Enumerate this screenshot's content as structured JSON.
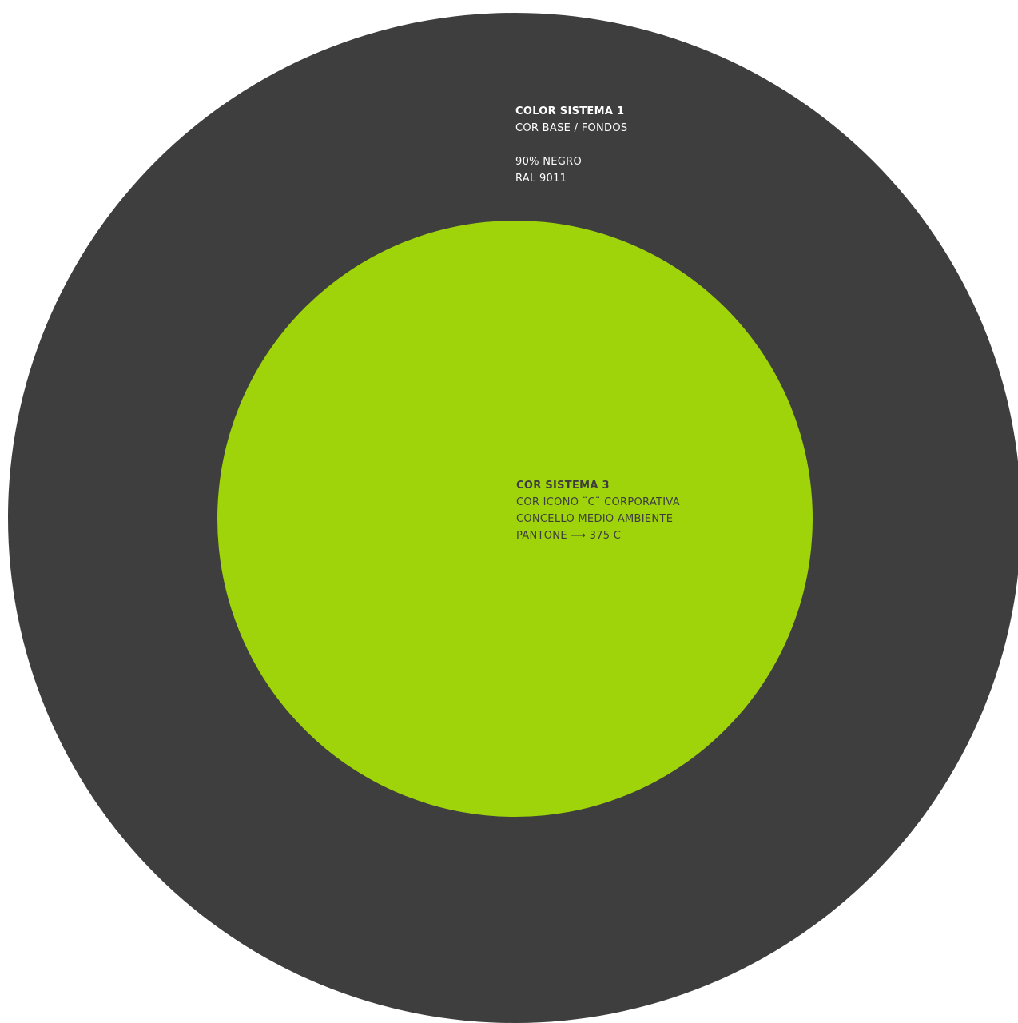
{
  "colors": {
    "background": "#ffffff",
    "outer_circle": "#3e3e3e",
    "inner_circle": "#a0d40a",
    "outer_text": "#ffffff",
    "inner_text": "#3d3d3d"
  },
  "outer_swatch": {
    "title": "COLOR SISTEMA 1",
    "subtitle": "COR BASE / FONDOS",
    "spec_1": "90% NEGRO",
    "spec_2": "RAL 9011"
  },
  "inner_swatch": {
    "title": "COR SISTEMA 3",
    "line_1": "COR ICONO ¨C¨ CORPORATIVA",
    "line_2": "CONCELLO MEDIO AMBIENTE",
    "line_3": "PANTONE ⟶ 375 C"
  }
}
